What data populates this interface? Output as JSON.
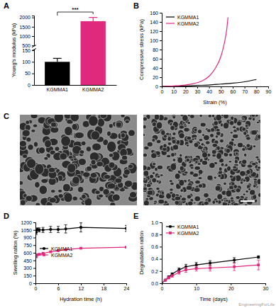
{
  "panels": [
    "A",
    "B",
    "C",
    "D",
    "E"
  ],
  "watermark": "EngineeringForLife",
  "chart_data": [
    {
      "type": "bar",
      "categories": [
        "KGMMA1",
        "KGMMA2"
      ],
      "values": [
        100,
        1800
      ],
      "errors": [
        15,
        200
      ],
      "colors": [
        "#000000",
        "#e0287d"
      ],
      "y_label": "Young's modulus (kPa)",
      "ylim": [
        0,
        2100
      ],
      "yticks": [
        0,
        50,
        100,
        150,
        500,
        1000,
        1500,
        2000
      ],
      "annotation": "***"
    },
    {
      "type": "line",
      "x_label": "Strain (%)",
      "y_label": "Compressive stress (kPa)",
      "xlim": [
        0,
        90
      ],
      "xticks": [
        0,
        10,
        20,
        30,
        40,
        50,
        60,
        70,
        80,
        90
      ],
      "ylim": [
        0,
        160
      ],
      "yticks": [
        0,
        20,
        40,
        60,
        80,
        100,
        120,
        140,
        160
      ],
      "legend": "upper left",
      "series": [
        {
          "name": "KGMMA1",
          "color": "#000000",
          "x": [
            0,
            10,
            20,
            30,
            40,
            50,
            60,
            70,
            80
          ],
          "values": [
            0,
            0.5,
            1,
            2,
            3,
            5,
            7,
            10,
            15
          ]
        },
        {
          "name": "KGMMA2",
          "color": "#e0287d",
          "x": [
            0,
            10,
            20,
            30,
            35,
            40,
            45,
            50,
            53,
            55,
            56
          ],
          "values": [
            0,
            1,
            3,
            8,
            13,
            22,
            38,
            65,
            95,
            125,
            150
          ]
        }
      ]
    },
    {
      "type": "line",
      "x_label": "Hydration time (h)",
      "y_label": "Swelling ration (%)",
      "x": [
        0.17,
        0.5,
        1,
        2,
        4,
        6,
        8,
        12,
        24
      ],
      "xlim": [
        0,
        24
      ],
      "xticks": [
        0,
        6,
        12,
        18,
        24
      ],
      "ylim": [
        0,
        1200
      ],
      "yticks": [
        0,
        150,
        300,
        450,
        600,
        750,
        900,
        1050,
        1200
      ],
      "legend": "lower left",
      "series": [
        {
          "name": "KGMMA1",
          "color": "#000000",
          "marker": "circle",
          "values": [
            1000,
            1060,
            1050,
            1050,
            1060,
            1060,
            1070,
            1100,
            1080
          ],
          "errors": [
            40,
            30,
            40,
            50,
            60,
            60,
            80,
            90,
            60
          ]
        },
        {
          "name": "KGMMA2",
          "color": "#e0287d",
          "marker": "square",
          "values": [
            520,
            560,
            570,
            590,
            620,
            640,
            660,
            690,
            710
          ],
          "errors": [
            10,
            10,
            10,
            10,
            10,
            10,
            10,
            10,
            10
          ]
        }
      ]
    },
    {
      "type": "line",
      "x_label": "Time (days)",
      "y_label": "Degradation ration",
      "x": [
        0,
        1,
        2,
        3,
        5,
        7,
        10,
        14,
        21,
        28
      ],
      "xlim": [
        0,
        30
      ],
      "xticks": [
        0,
        10,
        20,
        30
      ],
      "ylim": [
        0,
        1
      ],
      "yticks": [
        {
          "value": 0,
          "label": "0.0"
        },
        {
          "value": 0.2,
          "label": "0.2"
        },
        {
          "value": 0.4,
          "label": "0.4"
        },
        {
          "value": 0.6,
          "label": "0.6"
        },
        {
          "value": 0.8,
          "label": "0.8"
        },
        {
          "value": 1,
          "label": "1.0"
        }
      ],
      "legend": "upper left",
      "series": [
        {
          "name": "KGMMA1",
          "color": "#000000",
          "marker": "circle",
          "values": [
            0,
            0.05,
            0.1,
            0.15,
            0.22,
            0.27,
            0.3,
            0.33,
            0.38,
            0.43
          ],
          "errors": [
            0,
            0.01,
            0.02,
            0.02,
            0.03,
            0.04,
            0.04,
            0.04,
            0.04,
            0.02
          ]
        },
        {
          "name": "KGMMA2",
          "color": "#e0287d",
          "marker": "square",
          "values": [
            0,
            0.05,
            0.09,
            0.12,
            0.18,
            0.22,
            0.24,
            0.25,
            0.27,
            0.3
          ],
          "errors": [
            0,
            0.01,
            0.02,
            0.02,
            0.03,
            0.04,
            0.04,
            0.05,
            0.06,
            0.08
          ]
        }
      ]
    }
  ]
}
